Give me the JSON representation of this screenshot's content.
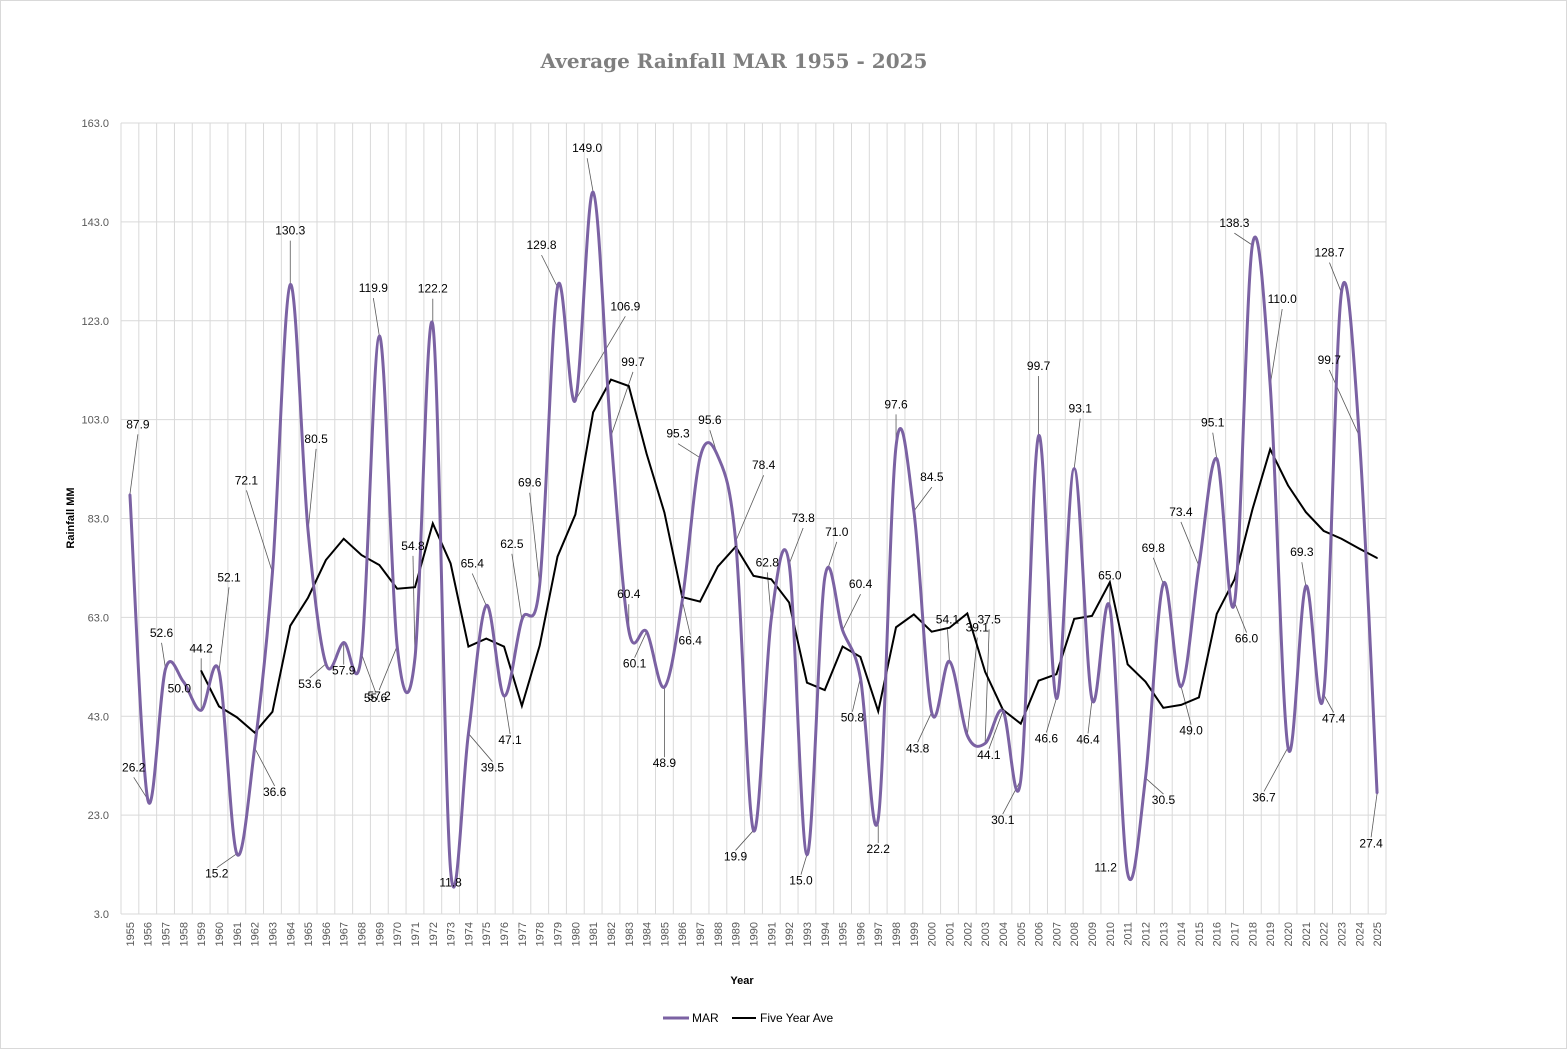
{
  "chart_data": {
    "type": "line",
    "title": "Average Rainfall MAR 1955 - 2025",
    "xlabel": "Year",
    "ylabel": "Rainfall MM",
    "ylim": [
      3.0,
      163.0
    ],
    "y_ticks": [
      "3.0",
      "23.0",
      "43.0",
      "63.0",
      "83.0",
      "103.0",
      "123.0",
      "143.0",
      "163.0"
    ],
    "grid": true,
    "legend_position": "bottom",
    "colors": {
      "MAR": "#7b62a3",
      "Five Year Ave": "#000000"
    },
    "x": [
      "1955",
      "1956",
      "1957",
      "1958",
      "1959",
      "1960",
      "1961",
      "1962",
      "1963",
      "1964",
      "1965",
      "1966",
      "1967",
      "1968",
      "1969",
      "1970",
      "1971",
      "1972",
      "1973",
      "1974",
      "1975",
      "1976",
      "1977",
      "1978",
      "1979",
      "1980",
      "1981",
      "1982",
      "1983",
      "1984",
      "1985",
      "1986",
      "1987",
      "1988",
      "1989",
      "1990",
      "1991",
      "1992",
      "1993",
      "1994",
      "1995",
      "1996",
      "1997",
      "1998",
      "1999",
      "2000",
      "2001",
      "2002",
      "2003",
      "2004",
      "2005",
      "2006",
      "2007",
      "2008",
      "2009",
      "2010",
      "2011",
      "2012",
      "2013",
      "2014",
      "2015",
      "2016",
      "2017",
      "2018",
      "2019",
      "2020",
      "2021",
      "2022",
      "2023",
      "2024",
      "2025"
    ],
    "series": [
      {
        "name": "MAR",
        "values": [
          87.9,
          26.2,
          52.6,
          50.0,
          44.2,
          52.1,
          15.2,
          36.6,
          72.1,
          130.3,
          80.5,
          53.6,
          57.9,
          55.6,
          119.9,
          57.2,
          54.8,
          122.2,
          11.8,
          39.5,
          65.4,
          47.1,
          62.5,
          69.6,
          129.8,
          106.9,
          149.0,
          99.7,
          60.4,
          60.1,
          48.9,
          66.4,
          95.3,
          95.6,
          78.4,
          19.9,
          62.8,
          73.8,
          15.0,
          71.0,
          60.4,
          50.8,
          22.2,
          97.6,
          84.5,
          43.8,
          54.1,
          39.1,
          37.5,
          44.1,
          30.1,
          99.7,
          46.6,
          93.1,
          46.4,
          65.0,
          11.2,
          30.5,
          69.8,
          49.0,
          73.4,
          95.1,
          66.0,
          138.3,
          110.0,
          36.7,
          69.3,
          47.4,
          128.7,
          99.7,
          27.4
        ],
        "labels": [
          "87.9",
          "26.2",
          "52.6",
          "50.0",
          "44.2",
          "52.1",
          "15.2",
          "36.6",
          "72.1",
          "130.3",
          "80.5",
          "53.6",
          "57.9",
          "55.6",
          "119.9",
          "57.2",
          "54.8",
          "122.2",
          "11.8",
          "39.5",
          "65.4",
          "47.1",
          "62.5",
          "69.6",
          "129.8",
          "106.9",
          "149.0",
          "99.7",
          "60.4",
          "60.1",
          "48.9",
          "66.4",
          "95.3",
          "95.6",
          "78.4",
          "19.9",
          "62.8",
          "73.8",
          "15.0",
          "71.0",
          "60.4",
          "50.8",
          "22.2",
          "97.6",
          "84.5",
          "43.8",
          "54.1",
          "39.1",
          "37.5",
          "44.1",
          "30.1",
          "99.7",
          "46.6",
          "93.1",
          "46.4",
          "65.0",
          "11.2",
          "30.5",
          "69.8",
          "49.0",
          "73.4",
          "95.1",
          "66.0",
          "138.3",
          "110.0",
          "36.7",
          "69.3",
          "47.4",
          "128.7",
          "99.7",
          "27.4"
        ]
      },
      {
        "name": "Five Year Ave",
        "values": [
          null,
          null,
          null,
          null,
          52.2,
          45.0,
          42.8,
          39.7,
          43.9,
          61.3,
          67.0,
          74.6,
          78.9,
          75.6,
          73.6,
          68.8,
          69.1,
          82.0,
          73.9,
          57.1,
          58.7,
          57.1,
          45.1,
          57.3,
          75.3,
          83.8,
          104.5,
          111.1,
          109.8,
          96.1,
          84.2,
          67.1,
          66.2,
          73.3,
          77.3,
          71.4,
          70.7,
          66.0,
          49.8,
          48.3,
          57.1,
          55.0,
          44.0,
          61.0,
          63.6,
          60.1,
          60.9,
          63.8,
          52.0,
          44.3,
          41.5,
          50.2,
          51.5,
          62.7,
          63.3,
          70.1,
          53.5,
          50.0,
          44.7,
          45.3,
          46.8,
          63.7,
          70.7,
          84.8,
          97.0,
          89.7,
          84.3,
          80.5,
          78.9,
          76.9,
          75.0
        ]
      }
    ],
    "legend": [
      "MAR",
      "Five Year Ave"
    ]
  }
}
